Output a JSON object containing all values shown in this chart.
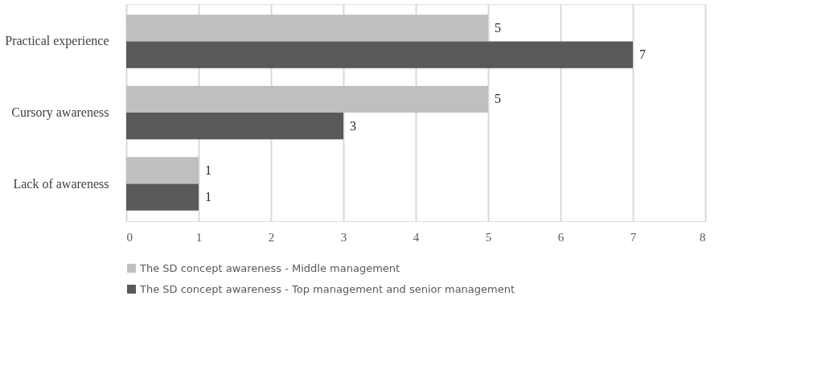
{
  "chart_data": {
    "type": "bar",
    "orientation": "horizontal",
    "categories": [
      "Practical experience",
      "Cursory awareness",
      "Lack of awareness"
    ],
    "series": [
      {
        "name": "The SD concept awareness - Middle management",
        "color": "#bfbfbf",
        "values": [
          5,
          5,
          1
        ]
      },
      {
        "name": "The SD concept awareness - Top management and senior management",
        "color": "#595959",
        "values": [
          7,
          3,
          1
        ]
      }
    ],
    "xlim": [
      0,
      8
    ],
    "xticks": [
      0,
      1,
      2,
      3,
      4,
      5,
      6,
      7,
      8
    ],
    "grid": "x",
    "legend": "bottom",
    "data_labels": true
  }
}
